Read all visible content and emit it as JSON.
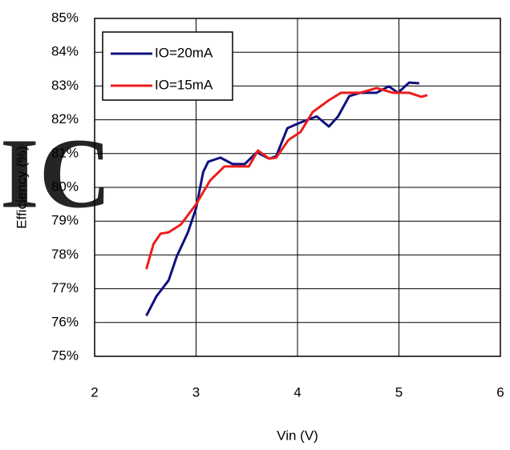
{
  "chart_data": {
    "type": "line",
    "watermark": "IC",
    "xlabel": "Vin (V)",
    "ylabel": "Efficiency (%)",
    "xlim": [
      2,
      6
    ],
    "xticks": [
      2,
      3,
      4,
      5,
      6
    ],
    "ylim": [
      75,
      85
    ],
    "yticks": [
      {
        "value": 75,
        "label": "75%"
      },
      {
        "value": 76,
        "label": "76%"
      },
      {
        "value": 77,
        "label": "77%"
      },
      {
        "value": 78,
        "label": "78%"
      },
      {
        "value": 79,
        "label": "79%"
      },
      {
        "value": 80,
        "label": "80%"
      },
      {
        "value": 81,
        "label": "81%"
      },
      {
        "value": 82,
        "label": "82%"
      },
      {
        "value": 83,
        "label": "83%"
      },
      {
        "value": 84,
        "label": "84%"
      },
      {
        "value": 85,
        "label": "85%"
      }
    ],
    "grid": true,
    "legend": "upper left",
    "series": [
      {
        "name": "IO=20mA",
        "color": "#101080",
        "x": [
          2.51,
          2.61,
          2.73,
          2.81,
          2.92,
          3.0,
          3.07,
          3.12,
          3.24,
          3.36,
          3.48,
          3.6,
          3.72,
          3.79,
          3.9,
          3.99,
          4.09,
          4.19,
          4.31,
          4.4,
          4.51,
          4.62,
          4.78,
          4.9,
          4.99,
          5.1,
          5.2
        ],
        "values": [
          76.2,
          76.78,
          77.25,
          77.96,
          78.67,
          79.38,
          80.45,
          80.76,
          80.88,
          80.69,
          80.69,
          81.04,
          80.85,
          80.92,
          81.75,
          81.87,
          81.99,
          82.1,
          81.8,
          82.1,
          82.7,
          82.8,
          82.8,
          82.99,
          82.8,
          83.1,
          83.08
        ]
      },
      {
        "name": "IO=15mA",
        "color": "#ee1c1c",
        "x": [
          2.51,
          2.58,
          2.65,
          2.73,
          2.85,
          3.0,
          3.14,
          3.28,
          3.44,
          3.52,
          3.61,
          3.72,
          3.79,
          3.91,
          4.03,
          4.15,
          4.31,
          4.43,
          4.62,
          4.78,
          4.94,
          5.1,
          5.22,
          5.28
        ],
        "values": [
          77.58,
          78.32,
          78.63,
          78.67,
          78.9,
          79.5,
          80.21,
          80.62,
          80.62,
          80.62,
          81.09,
          80.85,
          80.88,
          81.4,
          81.64,
          82.23,
          82.58,
          82.8,
          82.8,
          82.94,
          82.8,
          82.8,
          82.68,
          82.73
        ]
      }
    ]
  }
}
